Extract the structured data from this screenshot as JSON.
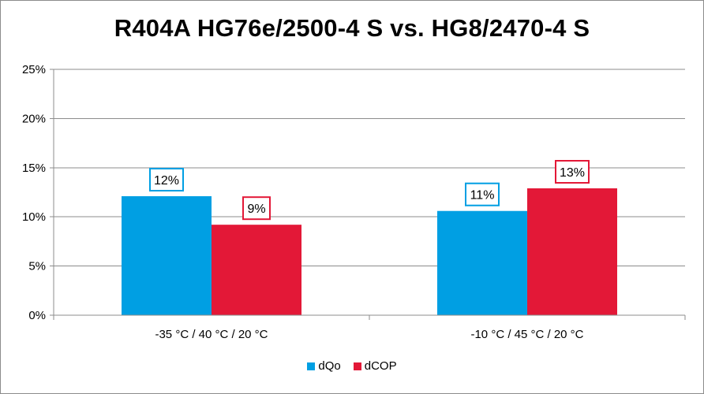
{
  "chart_data": {
    "type": "bar",
    "title": "R404A HG76e/2500-4 S vs. HG8/2470-4 S",
    "categories": [
      "-35 °C / 40 °C / 20 °C",
      "-10 °C / 45 °C / 20 °C"
    ],
    "series": [
      {
        "name": "dQo",
        "values": [
          12.1,
          10.6
        ],
        "labels": [
          "12%",
          "11%"
        ],
        "color": "#009fe3"
      },
      {
        "name": "dCOP",
        "values": [
          9.2,
          12.9
        ],
        "labels": [
          "9%",
          "13%"
        ],
        "color": "#e31837"
      }
    ],
    "ylim": [
      0,
      25
    ],
    "yticks": [
      0,
      5,
      10,
      15,
      20,
      25
    ],
    "ytick_labels": [
      "0%",
      "5%",
      "10%",
      "15%",
      "20%",
      "25%"
    ],
    "grid": true,
    "legend": "bottom"
  }
}
